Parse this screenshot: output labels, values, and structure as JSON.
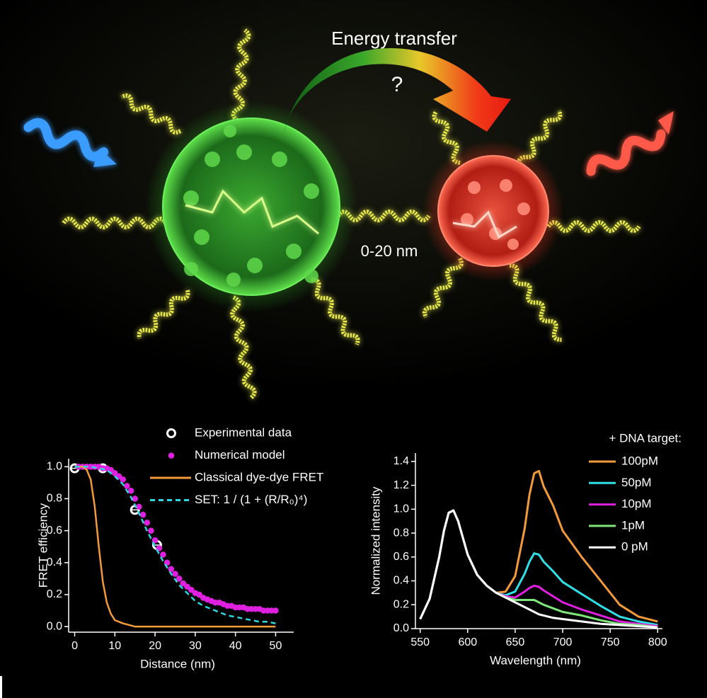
{
  "illustration": {
    "title": "Energy transfer",
    "question": "?",
    "distance": "0-20 nm"
  },
  "chart_data": [
    {
      "type": "line",
      "x_label": "Distance (nm)",
      "y_label": "FRET efficiency",
      "xlim": [
        -1.5,
        54.5
      ],
      "xticks": [
        0,
        10,
        20,
        30,
        40,
        50
      ],
      "ylim": [
        -0.035,
        1.05
      ],
      "yticks": [
        {
          "value": 0,
          "label": "0.0"
        },
        0.2,
        0.4,
        0.6,
        0.8,
        {
          "value": 1,
          "label": "1.0"
        }
      ],
      "series": [
        {
          "name": "Experimental data",
          "color": "#ffffff",
          "mode": "markers",
          "marker": "open-circle",
          "x": [
            0,
            7,
            15,
            20.5
          ],
          "values": [
            0.99,
            0.99,
            0.73,
            0.51
          ],
          "x_err": [
            0.8,
            1,
            1,
            1
          ]
        },
        {
          "name": "Numerical model",
          "color": "#e020e0",
          "mode": "markers",
          "marker": "dot",
          "x": [
            1,
            2,
            3,
            4,
            5,
            6,
            7,
            8,
            9,
            10,
            11,
            12,
            13,
            14,
            15,
            16,
            17,
            18,
            19,
            20,
            21,
            22,
            23,
            24,
            25,
            26,
            27,
            28,
            29,
            30,
            31,
            32,
            33,
            34,
            35,
            36,
            37,
            38,
            39,
            40,
            41,
            42,
            43,
            44,
            45,
            46,
            47,
            48,
            49,
            50
          ],
          "values": [
            1,
            1,
            1,
            1,
            1,
            1,
            0.99,
            0.99,
            0.98,
            0.96,
            0.94,
            0.92,
            0.88,
            0.85,
            0.8,
            0.75,
            0.7,
            0.65,
            0.6,
            0.54,
            0.49,
            0.45,
            0.4,
            0.36,
            0.33,
            0.3,
            0.27,
            0.25,
            0.23,
            0.21,
            0.2,
            0.18,
            0.17,
            0.16,
            0.15,
            0.15,
            0.14,
            0.13,
            0.13,
            0.12,
            0.12,
            0.12,
            0.11,
            0.11,
            0.11,
            0.11,
            0.1,
            0.1,
            0.1,
            0.1
          ]
        },
        {
          "name": "Classical dye-dye FRET",
          "color": "#f39a3a",
          "mode": "line",
          "dash": false,
          "x": [
            0,
            1,
            2,
            3,
            4,
            5,
            6,
            7,
            8,
            9,
            10,
            12,
            15,
            20,
            30,
            40,
            50
          ],
          "values": [
            1,
            1,
            1,
            0.98,
            0.92,
            0.75,
            0.5,
            0.28,
            0.15,
            0.08,
            0.04,
            0.02,
            0,
            0,
            0,
            0,
            0
          ]
        },
        {
          "name": "SET: 1 / (1 + (R/R₀)⁴)",
          "color": "#2fd6e0",
          "mode": "line",
          "dash": true,
          "x": [
            0,
            2,
            4,
            6,
            8,
            10,
            12,
            14,
            16,
            18,
            20,
            22,
            24,
            26,
            28,
            30,
            32,
            34,
            36,
            38,
            40,
            42,
            44,
            46,
            48,
            50
          ],
          "values": [
            1,
            1,
            1,
            0.99,
            0.98,
            0.94,
            0.89,
            0.81,
            0.71,
            0.6,
            0.5,
            0.41,
            0.33,
            0.26,
            0.21,
            0.16,
            0.13,
            0.11,
            0.09,
            0.07,
            0.06,
            0.05,
            0.04,
            0.03,
            0.03,
            0.02
          ]
        }
      ]
    },
    {
      "type": "line",
      "x_label": "Wavelength (nm)",
      "y_label": "Normalized intensity",
      "legend_title": "+ DNA target:",
      "xlim": [
        545,
        805
      ],
      "xticks": [
        550,
        600,
        650,
        700,
        750,
        800
      ],
      "ylim": [
        0,
        1.47
      ],
      "yticks": [
        {
          "value": 0,
          "label": "0.0"
        },
        0.2,
        0.4,
        0.6,
        0.8,
        {
          "value": 1,
          "label": "1.0"
        },
        1.2,
        1.4
      ],
      "x": [
        550,
        560,
        570,
        575,
        580,
        585,
        590,
        600,
        610,
        620,
        630,
        640,
        650,
        660,
        665,
        670,
        675,
        680,
        690,
        700,
        720,
        740,
        760,
        780,
        800
      ],
      "series": [
        {
          "name": "100pM",
          "color": "#f39a3a",
          "mode": "line",
          "values": [
            0.08,
            0.25,
            0.6,
            0.82,
            0.97,
            0.99,
            0.9,
            0.62,
            0.45,
            0.36,
            0.3,
            0.31,
            0.44,
            0.84,
            1.12,
            1.3,
            1.32,
            1.19,
            1.03,
            0.82,
            0.6,
            0.4,
            0.2,
            0.1,
            0.06
          ]
        },
        {
          "name": "50pM",
          "color": "#2fe0e6",
          "mode": "line",
          "values": [
            0.08,
            0.25,
            0.6,
            0.82,
            0.97,
            0.99,
            0.9,
            0.62,
            0.45,
            0.36,
            0.3,
            0.28,
            0.31,
            0.46,
            0.56,
            0.63,
            0.62,
            0.56,
            0.48,
            0.39,
            0.29,
            0.19,
            0.1,
            0.06,
            0.03
          ]
        },
        {
          "name": "10pM",
          "color": "#e020e0",
          "mode": "line",
          "values": [
            0.08,
            0.25,
            0.6,
            0.82,
            0.97,
            0.99,
            0.9,
            0.62,
            0.45,
            0.36,
            0.3,
            0.27,
            0.26,
            0.31,
            0.34,
            0.36,
            0.35,
            0.32,
            0.27,
            0.22,
            0.16,
            0.11,
            0.06,
            0.04,
            0.02
          ]
        },
        {
          "name": "1pM",
          "color": "#7fe67a",
          "mode": "line",
          "values": [
            0.08,
            0.25,
            0.6,
            0.82,
            0.97,
            0.99,
            0.9,
            0.62,
            0.45,
            0.36,
            0.3,
            0.26,
            0.24,
            0.24,
            0.24,
            0.24,
            0.22,
            0.2,
            0.17,
            0.14,
            0.11,
            0.07,
            0.04,
            0.03,
            0.01
          ]
        },
        {
          "name": "0 pM",
          "color": "#ffffff",
          "mode": "line",
          "values": [
            0.08,
            0.25,
            0.6,
            0.82,
            0.97,
            0.99,
            0.9,
            0.62,
            0.45,
            0.36,
            0.3,
            0.26,
            0.22,
            0.18,
            0.16,
            0.14,
            0.12,
            0.11,
            0.09,
            0.08,
            0.06,
            0.04,
            0.03,
            0.02,
            0.01
          ]
        }
      ]
    }
  ]
}
